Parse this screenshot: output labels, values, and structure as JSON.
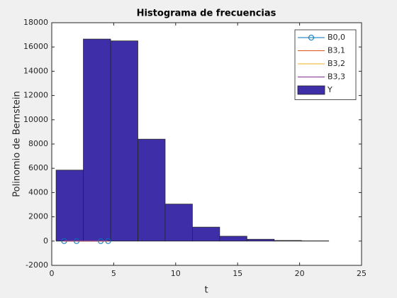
{
  "chart_data": {
    "type": "histogram",
    "title": "Histograma de frecuencias",
    "x_label": "t",
    "y_label": "Polinomio de Bernstein",
    "xlim": [
      0,
      25
    ],
    "xticks": [
      0,
      5,
      10,
      15,
      20,
      25
    ],
    "ylim": [
      -2000,
      18000
    ],
    "yticks": [
      -2000,
      0,
      2000,
      4000,
      6000,
      8000,
      10000,
      12000,
      14000,
      16000,
      18000
    ],
    "grid": false,
    "legend": "northeast",
    "histogram": {
      "name": "Y",
      "color": "#3e2fa8",
      "bins": [
        0.35,
        2.55,
        4.75,
        6.95,
        9.15,
        11.35,
        13.55,
        15.75,
        17.95,
        20.15,
        22.35
      ],
      "values": [
        5850,
        16650,
        16500,
        8400,
        3050,
        1150,
        400,
        150,
        50,
        20
      ]
    },
    "series": [
      {
        "name": "B0,0",
        "color": "#0072bd",
        "marker": "o",
        "x": [
          1,
          2,
          3.95,
          4.55
        ],
        "values": [
          0,
          0,
          0,
          0
        ]
      },
      {
        "name": "B3,1",
        "color": "#d95319",
        "marker": "none",
        "x": [
          1,
          2,
          3.95,
          4.55
        ],
        "values": [
          0,
          0,
          0,
          0
        ]
      },
      {
        "name": "B3,2",
        "color": "#edb120",
        "marker": "none",
        "x": [
          1,
          2,
          3.95,
          4.55
        ],
        "values": [
          0,
          0,
          0,
          0
        ]
      },
      {
        "name": "B3,3",
        "color": "#7e2f8e",
        "marker": "none",
        "x": [
          1,
          2,
          3.95,
          4.55
        ],
        "values": [
          0,
          0,
          0,
          0
        ]
      }
    ]
  }
}
